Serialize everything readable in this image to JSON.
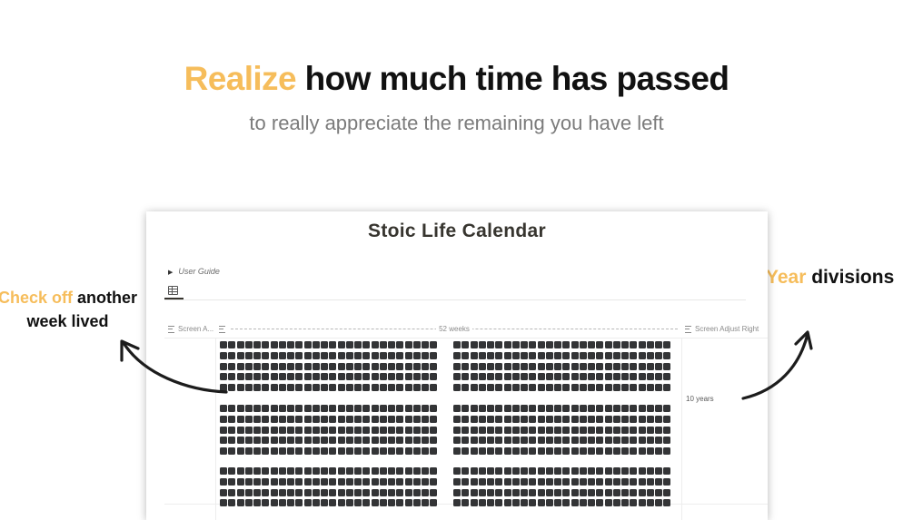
{
  "hero": {
    "title_accent": "Realize",
    "title_rest": " how much time has passed",
    "subtitle": "to really appreciate the remaining you have left"
  },
  "callouts": {
    "left": {
      "accent": "Check off",
      "rest": " another",
      "line2": "week lived"
    },
    "right": {
      "accent": "Year",
      "rest": " divisions"
    }
  },
  "window": {
    "title": "Stoic Life Calendar",
    "guide_label": "User Guide",
    "columns": {
      "left": "Screen A...",
      "weeks": "52 weeks",
      "right": "Screen Adjust Right"
    },
    "row_label": "10 years"
  },
  "calendar": {
    "weeks_per_row": 52,
    "blocks_visible": 3,
    "rows_per_block_visible": [
      5,
      5,
      4
    ]
  },
  "colors": {
    "accent": "#f6bd5b",
    "week_box": "#333436",
    "text": "#111111"
  },
  "icons": {
    "guide_toggle": "triangle-right-icon",
    "table_view": "table-icon",
    "column_property": "text-lines-icon",
    "arrow": "curved-arrow-icon"
  }
}
